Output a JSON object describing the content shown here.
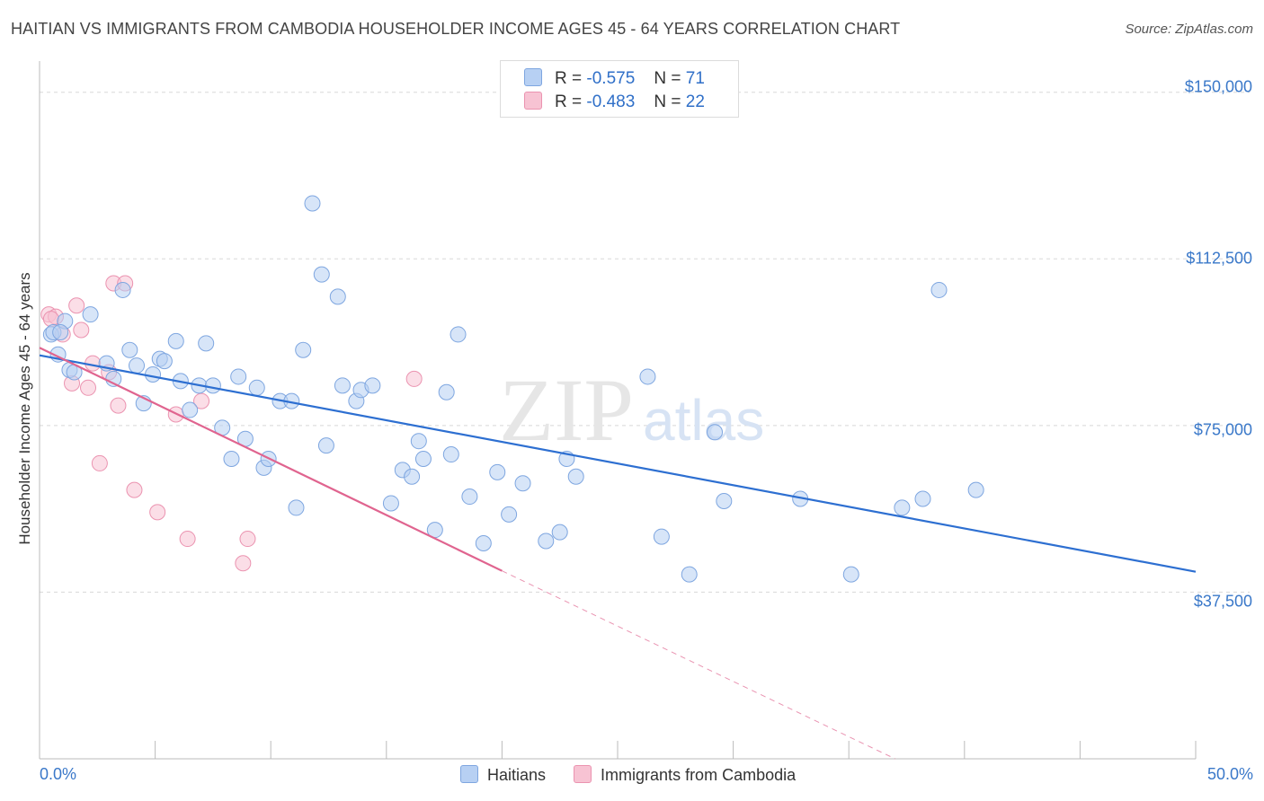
{
  "title": "HAITIAN VS IMMIGRANTS FROM CAMBODIA HOUSEHOLDER INCOME AGES 45 - 64 YEARS CORRELATION CHART",
  "source": "Source: ZipAtlas.com",
  "watermark": {
    "zip": "ZIP",
    "atlas": "atlas"
  },
  "legend": {
    "series1": {
      "r_label": "R =",
      "r_value": "-0.575",
      "n_label": "N =",
      "n_value": "71"
    },
    "series2": {
      "r_label": "R =",
      "r_value": "-0.483",
      "n_label": "N =",
      "n_value": "22"
    }
  },
  "bottom_legend": {
    "series1": "Haitians",
    "series2": "Immigrants from Cambodia"
  },
  "colors": {
    "series1_fill": "#b7d0f3",
    "series1_stroke": "#7ea6e0",
    "series1_line": "#2d6fd1",
    "series2_fill": "#f7c3d3",
    "series2_stroke": "#eb93b0",
    "series2_line": "#e0648f",
    "axis_text": "#3a78c9",
    "grid": "#d8d8d8"
  },
  "chart_data": {
    "type": "scatter",
    "title": "HAITIAN VS IMMIGRANTS FROM CAMBODIA HOUSEHOLDER INCOME AGES 45 - 64 YEARS CORRELATION CHART",
    "xlabel": "",
    "ylabel": "Householder Income Ages 45 - 64 years",
    "xlim": [
      0,
      50
    ],
    "ylim": [
      0,
      155000
    ],
    "x_tick_labels": [
      "0.0%",
      "50.0%"
    ],
    "y_ticks": [
      37500,
      75000,
      112500,
      150000
    ],
    "y_tick_labels": [
      "$37,500",
      "$75,000",
      "$112,500",
      "$150,000"
    ],
    "grid": true,
    "legend_position": "top-center",
    "series": [
      {
        "name": "Haitians",
        "r": -0.575,
        "n": 71,
        "trend": {
          "x": [
            0,
            50
          ],
          "y": [
            90800,
            42100
          ]
        },
        "points": [
          [
            0.5,
            95500
          ],
          [
            0.8,
            91000
          ],
          [
            1.1,
            98500
          ],
          [
            0.6,
            96000
          ],
          [
            1.3,
            87500
          ],
          [
            1.5,
            87000
          ],
          [
            2.2,
            100000
          ],
          [
            2.9,
            89000
          ],
          [
            3.2,
            85500
          ],
          [
            3.6,
            105500
          ],
          [
            3.9,
            92000
          ],
          [
            4.2,
            88500
          ],
          [
            4.5,
            80000
          ],
          [
            4.9,
            86500
          ],
          [
            5.2,
            90000
          ],
          [
            5.4,
            89500
          ],
          [
            5.9,
            94000
          ],
          [
            6.1,
            85000
          ],
          [
            6.5,
            78500
          ],
          [
            6.9,
            84000
          ],
          [
            7.2,
            93500
          ],
          [
            7.5,
            84000
          ],
          [
            7.9,
            74500
          ],
          [
            8.3,
            67500
          ],
          [
            8.6,
            86000
          ],
          [
            8.9,
            72000
          ],
          [
            9.4,
            83500
          ],
          [
            9.7,
            65500
          ],
          [
            9.9,
            67500
          ],
          [
            10.4,
            80500
          ],
          [
            10.9,
            80500
          ],
          [
            11.1,
            56500
          ],
          [
            11.4,
            92000
          ],
          [
            11.8,
            125000
          ],
          [
            12.2,
            109000
          ],
          [
            12.4,
            70500
          ],
          [
            12.9,
            104000
          ],
          [
            13.1,
            84000
          ],
          [
            13.7,
            80500
          ],
          [
            13.9,
            83000
          ],
          [
            14.4,
            84000
          ],
          [
            15.2,
            57500
          ],
          [
            15.7,
            65000
          ],
          [
            16.1,
            63500
          ],
          [
            16.4,
            71500
          ],
          [
            16.6,
            67500
          ],
          [
            17.1,
            51500
          ],
          [
            17.6,
            82500
          ],
          [
            17.8,
            68500
          ],
          [
            18.1,
            95500
          ],
          [
            18.6,
            59000
          ],
          [
            19.2,
            48500
          ],
          [
            19.8,
            64500
          ],
          [
            20.3,
            55000
          ],
          [
            20.9,
            62000
          ],
          [
            21.9,
            49000
          ],
          [
            22.5,
            51000
          ],
          [
            22.8,
            67500
          ],
          [
            23.2,
            63500
          ],
          [
            26.3,
            86000
          ],
          [
            26.9,
            50000
          ],
          [
            28.1,
            41500
          ],
          [
            29.2,
            73500
          ],
          [
            29.6,
            58000
          ],
          [
            32.9,
            58500
          ],
          [
            35.1,
            41500
          ],
          [
            37.3,
            56500
          ],
          [
            38.2,
            58500
          ],
          [
            38.9,
            105500
          ],
          [
            40.5,
            60500
          ],
          [
            0.9,
            96000
          ]
        ]
      },
      {
        "name": "Immigrants from Cambodia",
        "r": -0.483,
        "n": 22,
        "trend": {
          "x": [
            0,
            20
          ],
          "y": [
            92500,
            42300
          ]
        },
        "trend_dashed": {
          "x": [
            20,
            37
          ],
          "y": [
            42300,
            0
          ]
        },
        "points": [
          [
            0.4,
            100000
          ],
          [
            0.7,
            99500
          ],
          [
            1.0,
            95500
          ],
          [
            1.4,
            84500
          ],
          [
            1.6,
            102000
          ],
          [
            1.8,
            96500
          ],
          [
            2.1,
            83500
          ],
          [
            2.3,
            89000
          ],
          [
            2.6,
            66500
          ],
          [
            3.0,
            87000
          ],
          [
            3.2,
            107000
          ],
          [
            3.4,
            79500
          ],
          [
            3.7,
            107000
          ],
          [
            4.1,
            60500
          ],
          [
            5.1,
            55500
          ],
          [
            5.9,
            77500
          ],
          [
            6.4,
            49500
          ],
          [
            7.0,
            80500
          ],
          [
            8.8,
            44000
          ],
          [
            9.0,
            49500
          ],
          [
            16.2,
            85500
          ],
          [
            0.5,
            99000
          ]
        ]
      }
    ]
  }
}
